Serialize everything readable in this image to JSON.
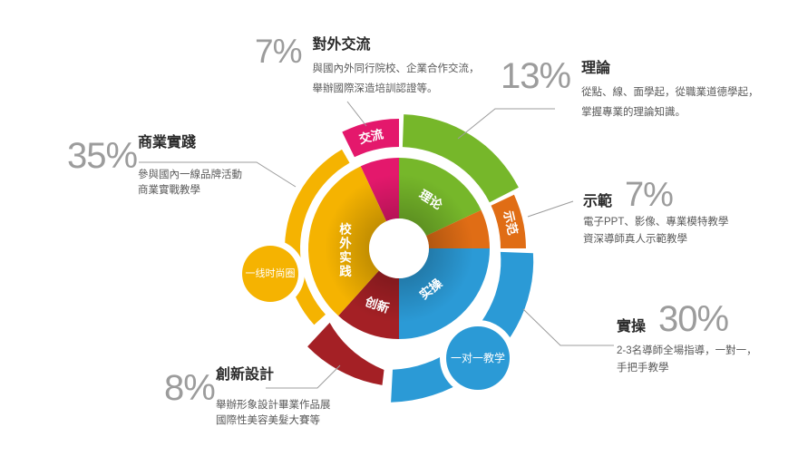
{
  "chart_data": {
    "type": "pie",
    "subtype": "donut-infographic",
    "unit": "%",
    "title": "",
    "legend": "none",
    "labels_on_segments": true,
    "segments": [
      {
        "label": "對外交流",
        "ring_label": "交流",
        "value": 7,
        "pct": "7%",
        "color": "#E4186C",
        "desc": [
          "與國內外同行院校、企業合作交流，",
          "舉辦國際深造培訓認證等。"
        ]
      },
      {
        "label": "理論",
        "ring_label": "理论",
        "value": 13,
        "pct": "13%",
        "color": "#76B72A",
        "desc": [
          "從點、線、面學起，從職業道德學起，",
          "掌握專業的理論知識。"
        ]
      },
      {
        "label": "示範",
        "ring_label": "示范",
        "value": 7,
        "pct": "7%",
        "color": "#E06D15",
        "desc": [
          "電子PPT、影像、專業模特教學",
          "資深導師真人示範教學"
        ]
      },
      {
        "label": "實操",
        "ring_label": "实操",
        "value": 30,
        "pct": "30%",
        "color": "#2B9AD6",
        "desc": [
          "2-3名導師全場指導，一對一，",
          "手把手教學"
        ]
      },
      {
        "label": "創新設計",
        "ring_label": "创新",
        "value": 8,
        "pct": "8%",
        "color": "#A42025",
        "desc": [
          "舉辦形象設計畢業作品展",
          "國際性美容美髮大賽等"
        ]
      },
      {
        "label": "商業實踐",
        "ring_label": "校外实践",
        "value": 35,
        "pct": "35%",
        "color": "#F5B301",
        "desc": [
          "參與國內一線品牌活動",
          "商業實戰教學"
        ]
      }
    ],
    "badges": [
      {
        "label": "一线时尚圈",
        "color": "#F5B301"
      },
      {
        "label": "一对一教学",
        "color": "#2B9AD6"
      }
    ],
    "palette": {
      "background": "#ffffff",
      "heading_text": "#2b2b2b",
      "description_text": "#5a5a5a",
      "percent_text": "#9c9c9c",
      "leader_line": "#9c9c9c",
      "segment_label_text": "#ffffff"
    }
  }
}
